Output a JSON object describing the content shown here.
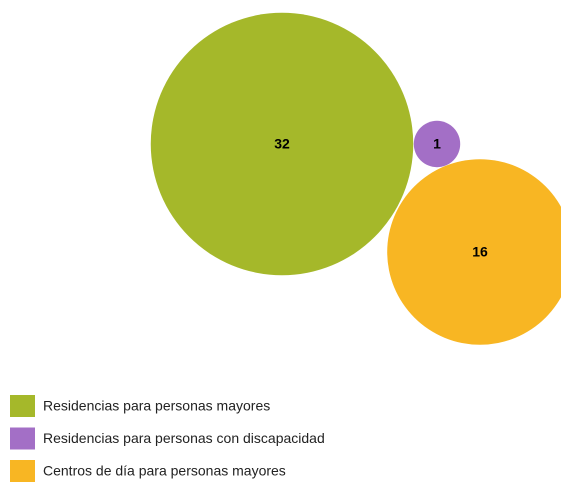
{
  "chart_data": {
    "type": "bubble",
    "categories": [
      "Residencias para personas mayores",
      "Residencias para personas con discapacidad",
      "Centros de día para personas mayores"
    ],
    "values": [
      32,
      1,
      16
    ],
    "colors": [
      "#a5b82a",
      "#a36fc6",
      "#f8b623"
    ],
    "legend": "bottom-left"
  }
}
